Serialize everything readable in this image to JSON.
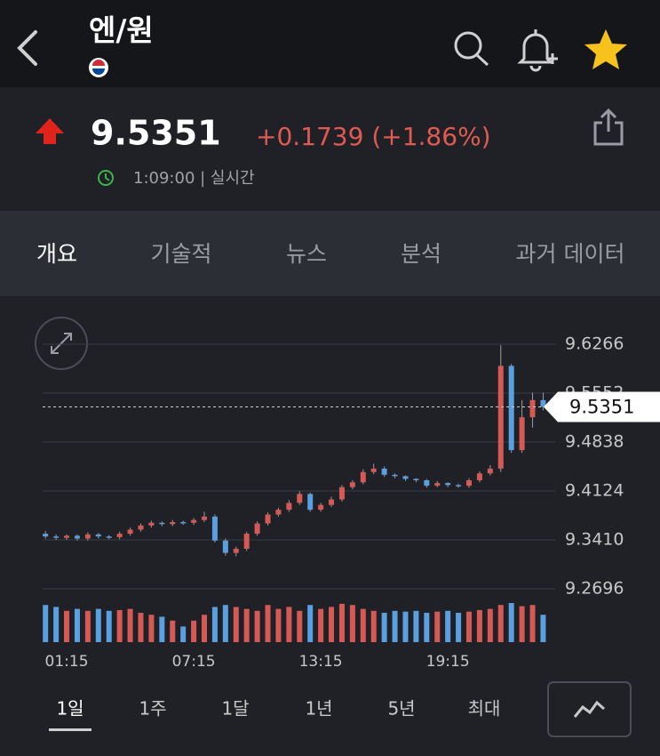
{
  "header": {
    "title": "엔/원"
  },
  "quote": {
    "price": "9.5351",
    "change": "+0.1739 (+1.86%)",
    "time": "1:09:00 | 실시간"
  },
  "tabs": [
    "개요",
    "기술적",
    "뉴스",
    "분석",
    "과거 데이터"
  ],
  "ranges": [
    "1일",
    "1주",
    "1달",
    "1년",
    "5년",
    "최대"
  ],
  "chart_data": {
    "type": "candlestick",
    "categories": [
      null,
      null,
      "01:15",
      null,
      null,
      null,
      null,
      null,
      null,
      null,
      null,
      null,
      null,
      null,
      "07:15",
      null,
      null,
      null,
      null,
      null,
      null,
      null,
      null,
      null,
      null,
      null,
      "13:15",
      null,
      null,
      null,
      null,
      null,
      null,
      null,
      null,
      null,
      null,
      null,
      "19:15",
      null,
      null,
      null,
      null,
      null,
      null,
      null,
      null,
      null
    ],
    "open": [
      9.35,
      9.346,
      9.344,
      9.347,
      9.343,
      9.349,
      9.346,
      9.345,
      9.35,
      9.356,
      9.362,
      9.366,
      9.364,
      9.367,
      9.366,
      9.37,
      9.375,
      9.34,
      9.322,
      9.328,
      9.35,
      9.365,
      9.378,
      9.385,
      9.395,
      9.408,
      9.385,
      9.392,
      9.4,
      9.418,
      9.425,
      9.44,
      9.445,
      9.436,
      9.434,
      9.43,
      9.428,
      9.42,
      9.424,
      9.421,
      9.42,
      9.428,
      9.438,
      9.445,
      9.595,
      9.472,
      9.52,
      9.545
    ],
    "high": [
      9.354,
      9.349,
      9.349,
      9.349,
      9.352,
      9.351,
      9.348,
      9.353,
      9.359,
      9.365,
      9.369,
      9.368,
      9.37,
      9.369,
      9.373,
      9.382,
      9.378,
      9.343,
      9.331,
      9.353,
      9.368,
      9.381,
      9.388,
      9.399,
      9.412,
      9.41,
      9.395,
      9.404,
      9.421,
      9.428,
      9.444,
      9.452,
      9.448,
      9.438,
      9.435,
      9.431,
      9.43,
      9.427,
      9.425,
      9.423,
      9.431,
      9.441,
      9.45,
      9.625,
      9.598,
      9.545,
      9.556,
      9.556
    ],
    "low": [
      9.343,
      9.341,
      9.341,
      9.34,
      9.34,
      9.343,
      9.342,
      9.342,
      9.347,
      9.353,
      9.359,
      9.361,
      9.361,
      9.363,
      9.363,
      9.367,
      9.337,
      9.318,
      9.317,
      9.325,
      9.347,
      9.362,
      9.375,
      9.382,
      9.392,
      9.382,
      9.382,
      9.389,
      9.397,
      9.415,
      9.422,
      9.437,
      9.433,
      9.431,
      9.427,
      9.425,
      9.417,
      9.418,
      9.418,
      9.417,
      9.417,
      9.425,
      9.435,
      9.44,
      9.468,
      9.468,
      9.505,
      9.53
    ],
    "close": [
      9.346,
      9.344,
      9.347,
      9.343,
      9.349,
      9.346,
      9.345,
      9.35,
      9.356,
      9.362,
      9.366,
      9.364,
      9.367,
      9.366,
      9.37,
      9.375,
      9.34,
      9.322,
      9.328,
      9.35,
      9.365,
      9.378,
      9.385,
      9.395,
      9.408,
      9.385,
      9.392,
      9.4,
      9.418,
      9.425,
      9.44,
      9.445,
      9.436,
      9.434,
      9.43,
      9.428,
      9.42,
      9.424,
      9.421,
      9.42,
      9.428,
      9.438,
      9.445,
      9.595,
      9.472,
      9.52,
      9.545,
      9.5351
    ],
    "volume": [
      95,
      90,
      80,
      85,
      80,
      85,
      80,
      82,
      85,
      75,
      70,
      65,
      55,
      40,
      55,
      70,
      90,
      95,
      90,
      85,
      80,
      95,
      85,
      90,
      80,
      95,
      85,
      90,
      98,
      95,
      85,
      80,
      75,
      80,
      78,
      80,
      75,
      78,
      80,
      75,
      78,
      82,
      85,
      95,
      100,
      92,
      95,
      70
    ],
    "volume_ylim": [
      0,
      100
    ],
    "up_color": "#d55a55",
    "down_color": "#5a9fe0",
    "current_value": 9.5351,
    "ylim": [
      9.2696,
      9.6266
    ],
    "yticks": [
      9.2696,
      {
        "value": 9.341,
        "label": "9.3410"
      },
      9.4124,
      9.4838,
      9.5552,
      9.6266
    ],
    "grid": true
  }
}
